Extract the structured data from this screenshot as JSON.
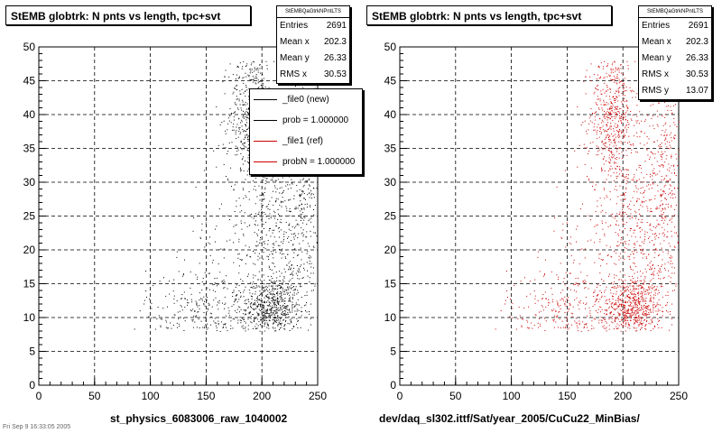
{
  "footer": "Fri Sep 9 16:33:05 2005",
  "panels": [
    {
      "title": "StEMB globtrk: N pnts vs length, tpc+svt",
      "stats_name": "StEMBQaGtrkNPntLTS",
      "stats": [
        {
          "label": "Entries",
          "value": "2691"
        },
        {
          "label": "Mean x",
          "value": "202.3"
        },
        {
          "label": "Mean y",
          "value": "26.33"
        },
        {
          "label": "RMS x",
          "value": "30.53"
        }
      ],
      "legend": [
        {
          "label": "_file0 (new)",
          "color": "#000000"
        },
        {
          "label": "prob = 1.000000",
          "color": "#000000"
        },
        {
          "label": "_file1 (ref)",
          "color": "#cc0000"
        },
        {
          "label": "probN = 1.000000",
          "color": "#cc0000"
        }
      ],
      "xtitle": "st_physics_6083006_raw_1040002"
    },
    {
      "title": "StEMB globtrk: N pnts vs length, tpc+svt",
      "stats_name": "StEMBQaGtrkNPntLTS",
      "stats": [
        {
          "label": "Entries",
          "value": "2691"
        },
        {
          "label": "Mean x",
          "value": "202.3"
        },
        {
          "label": "Mean y",
          "value": "26.33"
        },
        {
          "label": "RMS x",
          "value": "30.53"
        },
        {
          "label": "RMS y",
          "value": "13.07"
        }
      ],
      "xtitle": "dev/daq_sl302.ittf/Sat/year_2005/CuCu22_MinBias/"
    }
  ],
  "chart_data": [
    {
      "type": "scatter",
      "title": "StEMB globtrk: N pnts vs length, tpc+svt",
      "xlabel": "st_physics_6083006_raw_1040002",
      "ylabel": "",
      "xlim": [
        0,
        250
      ],
      "ylim": [
        0,
        50
      ],
      "xticks": [
        0,
        50,
        100,
        150,
        200,
        250
      ],
      "yticks": [
        0,
        5,
        10,
        15,
        20,
        25,
        30,
        35,
        40,
        45,
        50
      ],
      "grid": true,
      "marker_color": "#000000",
      "entries": 2691,
      "clusters": [
        {
          "x_center": 210,
          "y_center": 11.5,
          "x_spread": 12,
          "y_spread": 2.2,
          "count": 520
        },
        {
          "x_center": 190,
          "y_center": 40,
          "x_spread": 10,
          "y_spread": 5,
          "count": 560
        },
        {
          "x_center": 225,
          "y_center": 25,
          "x_spread": 18,
          "y_spread": 9,
          "count": 520
        },
        {
          "x_center": 160,
          "y_center": 11,
          "x_spread": 32,
          "y_spread": 3.2,
          "count": 380
        },
        {
          "x_center": 195,
          "y_center": 20,
          "x_spread": 30,
          "y_spread": 8,
          "count": 300
        },
        {
          "x_center": 240,
          "y_center": 35,
          "x_spread": 8,
          "y_spread": 8,
          "count": 160
        }
      ]
    },
    {
      "type": "scatter",
      "title": "StEMB globtrk: N pnts vs length, tpc+svt",
      "xlabel": "dev/daq_sl302.ittf/Sat/year_2005/CuCu22_MinBias/",
      "ylabel": "",
      "xlim": [
        0,
        250
      ],
      "ylim": [
        0,
        50
      ],
      "xticks": [
        0,
        50,
        100,
        150,
        200,
        250
      ],
      "yticks": [
        0,
        5,
        10,
        15,
        20,
        25,
        30,
        35,
        40,
        45,
        50
      ],
      "grid": true,
      "marker_color": "#cc0000",
      "entries": 2691,
      "clusters": [
        {
          "x_center": 210,
          "y_center": 11.5,
          "x_spread": 12,
          "y_spread": 2.2,
          "count": 520
        },
        {
          "x_center": 190,
          "y_center": 40,
          "x_spread": 10,
          "y_spread": 5,
          "count": 560
        },
        {
          "x_center": 225,
          "y_center": 25,
          "x_spread": 18,
          "y_spread": 9,
          "count": 520
        },
        {
          "x_center": 160,
          "y_center": 11,
          "x_spread": 32,
          "y_spread": 3.2,
          "count": 380
        },
        {
          "x_center": 195,
          "y_center": 20,
          "x_spread": 30,
          "y_spread": 8,
          "count": 300
        },
        {
          "x_center": 240,
          "y_center": 35,
          "x_spread": 8,
          "y_spread": 8,
          "count": 160
        }
      ]
    }
  ]
}
